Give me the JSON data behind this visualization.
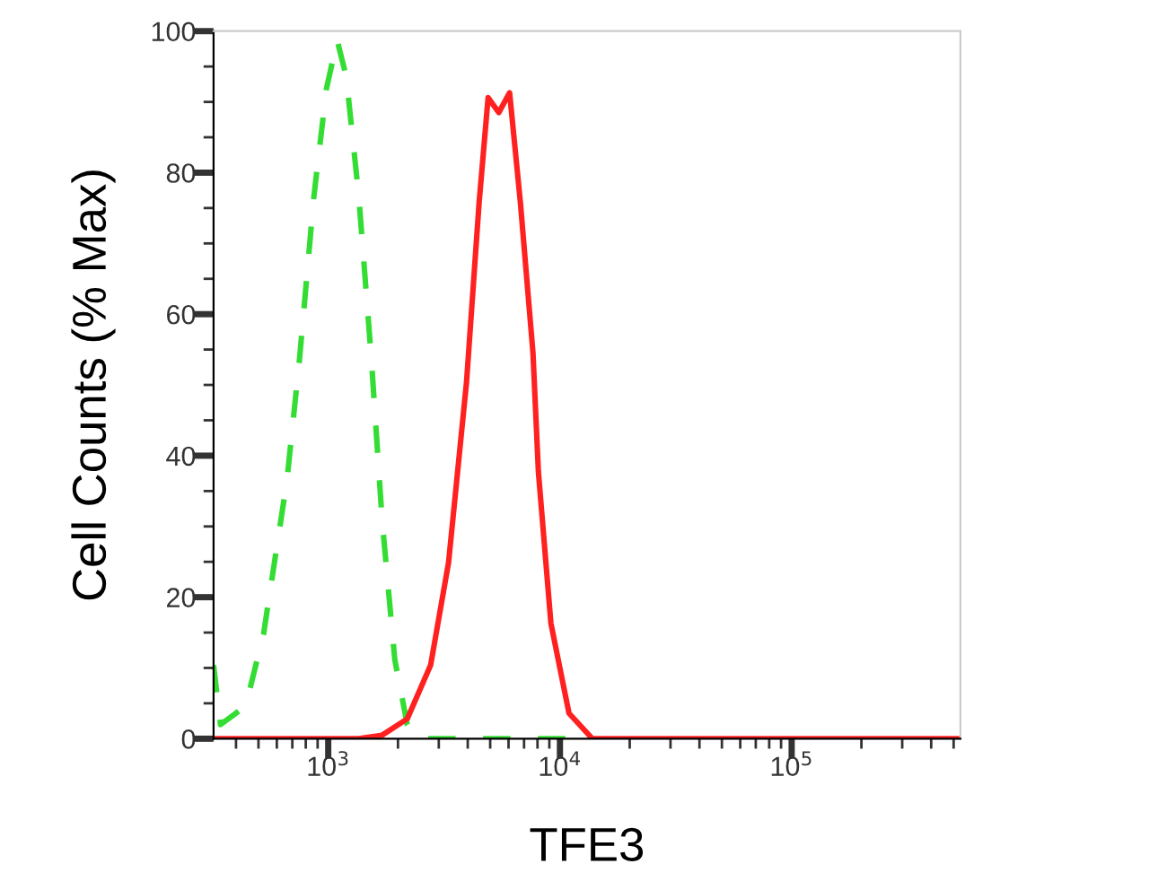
{
  "chart_data": {
    "type": "line",
    "xlabel": "TFE3",
    "ylabel": "Cell Counts (% Max)",
    "log": "x",
    "grid": false,
    "xlim": [
      320,
      535000
    ],
    "ylim": [
      0,
      100
    ],
    "xticks": [
      {
        "value": 400,
        "label": null
      },
      {
        "value": 500,
        "label": null
      },
      {
        "value": 600,
        "label": null
      },
      {
        "value": 700,
        "label": null
      },
      {
        "value": 800,
        "label": null
      },
      {
        "value": 900,
        "label": null
      },
      {
        "value": 1000,
        "label": "10$^{3}$"
      },
      {
        "value": 2000,
        "label": null
      },
      {
        "value": 3000,
        "label": null
      },
      {
        "value": 4000,
        "label": null
      },
      {
        "value": 5000,
        "label": null
      },
      {
        "value": 6000,
        "label": null
      },
      {
        "value": 7000,
        "label": null
      },
      {
        "value": 8000,
        "label": null
      },
      {
        "value": 9000,
        "label": null
      },
      {
        "value": 10000,
        "label": "10$^{4}$"
      },
      {
        "value": 20000,
        "label": null
      },
      {
        "value": 30000,
        "label": null
      },
      {
        "value": 40000,
        "label": null
      },
      {
        "value": 50000,
        "label": null
      },
      {
        "value": 60000,
        "label": null
      },
      {
        "value": 70000,
        "label": null
      },
      {
        "value": 80000,
        "label": null
      },
      {
        "value": 90000,
        "label": null
      },
      {
        "value": 100000,
        "label": "10$^{5}$"
      },
      {
        "value": 200000,
        "label": null
      },
      {
        "value": 300000,
        "label": null
      },
      {
        "value": 400000,
        "label": null
      },
      {
        "value": 500000,
        "label": null
      }
    ],
    "yticks": [
      0,
      {
        "value": 5,
        "label": null
      },
      {
        "value": 10,
        "label": null
      },
      {
        "value": 15,
        "label": null
      },
      20,
      {
        "value": 25,
        "label": null
      },
      {
        "value": 30,
        "label": null
      },
      {
        "value": 35,
        "label": null
      },
      40,
      {
        "value": 45,
        "label": null
      },
      {
        "value": 50,
        "label": null
      },
      {
        "value": 55,
        "label": null
      },
      60,
      {
        "value": 65,
        "label": null
      },
      {
        "value": 70,
        "label": null
      },
      {
        "value": 75,
        "label": null
      },
      80,
      {
        "value": 85,
        "label": null
      },
      {
        "value": 90,
        "label": null
      },
      {
        "value": 95,
        "label": null
      },
      100
    ],
    "series": [
      {
        "color": "#33dd33",
        "line_style": "dashed",
        "x": [
          320,
          343,
          440,
          526,
          664,
          752,
          867,
          983,
          1093,
          1196,
          1355,
          1535,
          1709,
          1937,
          2193,
          2443,
          13800
        ],
        "values": [
          10.4,
          2,
          4.6,
          14.8,
          36.6,
          53.7,
          76.6,
          91.9,
          98.7,
          93.6,
          76.6,
          53.7,
          30.8,
          11.2,
          2,
          0,
          0
        ]
      },
      {
        "color": "#ff2020",
        "line_style": "solid",
        "x": [
          320,
          1355,
          1709,
          2193,
          2767,
          3306,
          3952,
          4480,
          4898,
          5447,
          6064,
          6749,
          7650,
          8072,
          9143,
          10940,
          13800,
          535000
        ],
        "values": [
          0,
          0,
          0.5,
          2.8,
          10.4,
          24.9,
          50.4,
          75.8,
          90.6,
          88.5,
          91.3,
          75.8,
          54.5,
          37.7,
          16.3,
          3.6,
          0,
          0
        ]
      }
    ]
  }
}
